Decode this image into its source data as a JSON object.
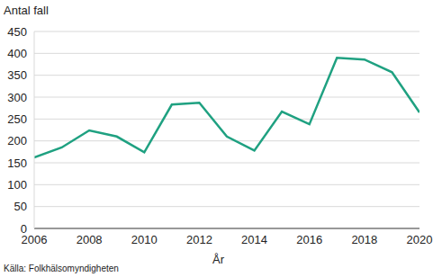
{
  "chart_data": {
    "type": "line",
    "y_label": "Antal fall",
    "x_label": "År",
    "source": "Källa: Folkhälsomyndigheten",
    "x": [
      2006,
      2007,
      2008,
      2009,
      2010,
      2011,
      2012,
      2013,
      2014,
      2015,
      2016,
      2017,
      2018,
      2019,
      2020
    ],
    "values": [
      162,
      185,
      224,
      210,
      174,
      283,
      287,
      210,
      178,
      267,
      238,
      390,
      386,
      357,
      265
    ],
    "color": "#1fa181",
    "xlim": [
      2006,
      2020
    ],
    "xticks": [
      2006,
      2008,
      2010,
      2012,
      2014,
      2016,
      2018,
      2020
    ],
    "ylim": [
      0,
      450
    ],
    "yticks": [
      0,
      50,
      100,
      150,
      200,
      250,
      300,
      350,
      400,
      450
    ],
    "grid": true
  }
}
